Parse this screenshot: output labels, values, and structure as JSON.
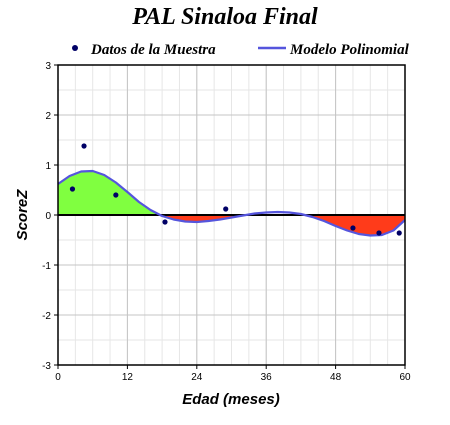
{
  "chart_data": {
    "type": "scatter",
    "title": "PAL Sinaloa Final",
    "xlabel": "Edad (meses)",
    "ylabel": "ScoreZ",
    "xlim": [
      0,
      60
    ],
    "ylim": [
      -3,
      3
    ],
    "x_ticks": [
      0,
      12,
      24,
      36,
      48,
      60
    ],
    "y_ticks": [
      3,
      2,
      1,
      0,
      -1,
      -2,
      -3
    ],
    "x_tick_labels": [
      "0",
      "12",
      "24",
      "36",
      "48",
      "60"
    ],
    "y_tick_labels": [
      "3",
      "2",
      "1",
      "0",
      "-1",
      "-2",
      "-3"
    ],
    "grid": true,
    "legend_position": "top",
    "series": [
      {
        "name": "Datos de la Muestra",
        "kind": "scatter",
        "color": "#000066",
        "points": [
          {
            "x": 2.5,
            "y": 0.52
          },
          {
            "x": 4.5,
            "y": 1.38
          },
          {
            "x": 10,
            "y": 0.4
          },
          {
            "x": 18.5,
            "y": -0.14
          },
          {
            "x": 29,
            "y": 0.12
          },
          {
            "x": 51,
            "y": -0.26
          },
          {
            "x": 55.5,
            "y": -0.36
          },
          {
            "x": 59,
            "y": -0.36
          }
        ]
      },
      {
        "name": "Modelo Polinomial",
        "kind": "line",
        "color": "#5555dd",
        "points": [
          {
            "x": 0,
            "y": 0.62
          },
          {
            "x": 2,
            "y": 0.78
          },
          {
            "x": 4,
            "y": 0.87
          },
          {
            "x": 6,
            "y": 0.88
          },
          {
            "x": 8,
            "y": 0.8
          },
          {
            "x": 10,
            "y": 0.65
          },
          {
            "x": 12,
            "y": 0.46
          },
          {
            "x": 14,
            "y": 0.26
          },
          {
            "x": 16,
            "y": 0.1
          },
          {
            "x": 18,
            "y": -0.02
          },
          {
            "x": 20,
            "y": -0.09
          },
          {
            "x": 22,
            "y": -0.13
          },
          {
            "x": 24,
            "y": -0.14
          },
          {
            "x": 26,
            "y": -0.12
          },
          {
            "x": 28,
            "y": -0.09
          },
          {
            "x": 30,
            "y": -0.05
          },
          {
            "x": 32,
            "y": -0.01
          },
          {
            "x": 34,
            "y": 0.03
          },
          {
            "x": 36,
            "y": 0.05
          },
          {
            "x": 38,
            "y": 0.06
          },
          {
            "x": 40,
            "y": 0.05
          },
          {
            "x": 42,
            "y": 0.02
          },
          {
            "x": 44,
            "y": -0.04
          },
          {
            "x": 46,
            "y": -0.12
          },
          {
            "x": 48,
            "y": -0.22
          },
          {
            "x": 50,
            "y": -0.31
          },
          {
            "x": 52,
            "y": -0.38
          },
          {
            "x": 54,
            "y": -0.41
          },
          {
            "x": 56,
            "y": -0.4
          },
          {
            "x": 58,
            "y": -0.31
          },
          {
            "x": 60,
            "y": -0.1
          }
        ]
      }
    ],
    "fill_colors": {
      "above_zero": "#80ff40",
      "below_zero": "#ff3b1a"
    }
  }
}
